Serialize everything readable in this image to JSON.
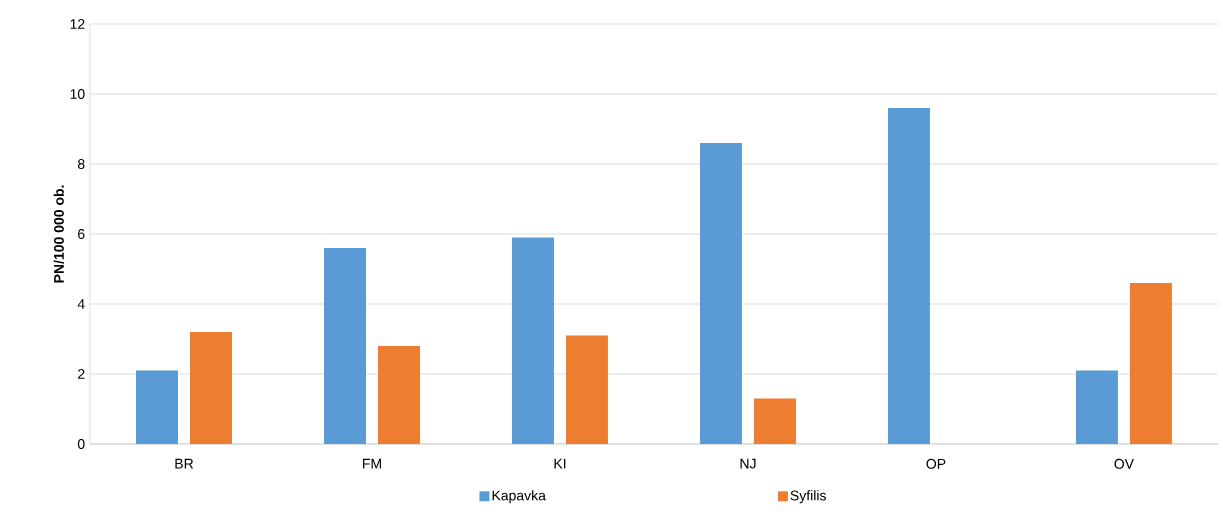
{
  "chart_data": {
    "type": "bar",
    "ylabel": "**PN/100 000 ob.**",
    "categories": [
      "BR",
      "FM",
      "KI",
      "NJ",
      "OP",
      "OV"
    ],
    "series": [
      {
        "name": "Kapavka",
        "color": "#5b9bd5",
        "values": [
          2.1,
          5.6,
          5.9,
          8.6,
          9.6,
          2.1
        ]
      },
      {
        "name": "Syfilis",
        "color": "#ed7d31",
        "values": [
          3.2,
          2.8,
          3.1,
          1.3,
          null,
          4.6
        ]
      }
    ],
    "ylim": [
      0,
      12
    ],
    "yticks": [
      0,
      2,
      4,
      6,
      8,
      10,
      12
    ],
    "grid": "y",
    "legend": "bottom"
  }
}
